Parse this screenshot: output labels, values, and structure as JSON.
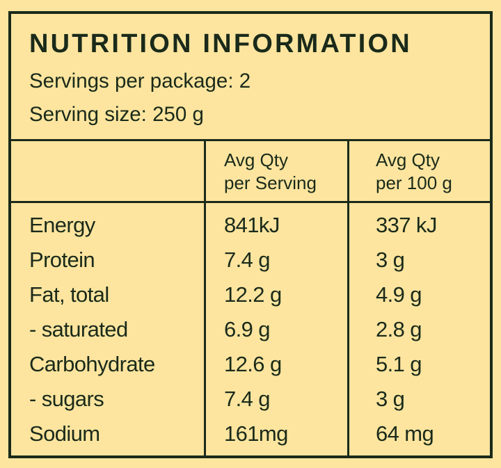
{
  "label": {
    "title": "NUTRITION INFORMATION",
    "servings_per_package": "Servings per package: 2",
    "serving_size": "Serving size: 250 g"
  },
  "table": {
    "columns": [
      {
        "line1": "",
        "line2": ""
      },
      {
        "line1": "Avg Qty",
        "line2": "per Serving"
      },
      {
        "line1": "Avg Qty",
        "line2": "per 100 g"
      }
    ],
    "rows": [
      {
        "nutrient": "Energy",
        "per_serving": "841kJ",
        "per_100g": "337 kJ"
      },
      {
        "nutrient": "Protein",
        "per_serving": "7.4 g",
        "per_100g": "3 g"
      },
      {
        "nutrient": "Fat, total",
        "per_serving": "12.2 g",
        "per_100g": "4.9 g"
      },
      {
        "nutrient": "- saturated",
        "per_serving": "6.9 g",
        "per_100g": "2.8 g"
      },
      {
        "nutrient": "Carbohydrate",
        "per_serving": "12.6 g",
        "per_100g": "5.1 g"
      },
      {
        "nutrient": "- sugars",
        "per_serving": "7.4 g",
        "per_100g": "3 g"
      },
      {
        "nutrient": "Sodium",
        "per_serving": "161mg",
        "per_100g": "64 mg"
      }
    ]
  },
  "colors": {
    "background": "#fde59f",
    "ink": "#1a2a1a"
  }
}
